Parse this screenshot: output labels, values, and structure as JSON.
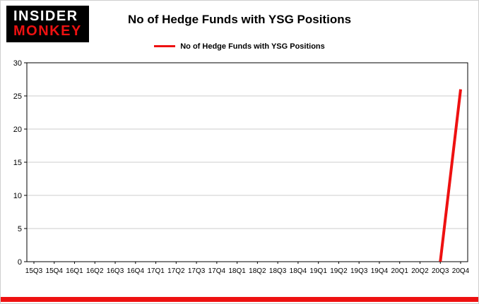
{
  "logo": {
    "line1": "INSIDER",
    "line2": "MONKEY"
  },
  "title": "No of Hedge Funds with YSG Positions",
  "legend": {
    "label": "No of Hedge Funds with YSG Positions"
  },
  "colors": {
    "accent": "#ee1111",
    "grid": "#cccccc",
    "axis": "#000000",
    "text": "#000000",
    "logo_bg": "#000000",
    "logo_insider": "#ffffff"
  },
  "chart_data": {
    "type": "line",
    "title": "No of Hedge Funds with YSG Positions",
    "categories": [
      "15Q3",
      "15Q4",
      "16Q1",
      "16Q2",
      "16Q3",
      "16Q4",
      "17Q1",
      "17Q2",
      "17Q3",
      "17Q4",
      "18Q1",
      "18Q2",
      "18Q3",
      "18Q4",
      "19Q1",
      "19Q2",
      "19Q3",
      "19Q4",
      "20Q1",
      "20Q2",
      "20Q3",
      "20Q4"
    ],
    "series": [
      {
        "name": "No of Hedge Funds with YSG Positions",
        "color": "#ee1111",
        "values": [
          null,
          null,
          null,
          null,
          null,
          null,
          null,
          null,
          null,
          null,
          null,
          null,
          null,
          null,
          null,
          null,
          null,
          null,
          null,
          null,
          0,
          26
        ]
      }
    ],
    "ylim": [
      0,
      30
    ],
    "yticks": [
      0,
      5,
      10,
      15,
      20,
      25,
      30
    ],
    "grid": true,
    "legend_position": "top-center"
  }
}
